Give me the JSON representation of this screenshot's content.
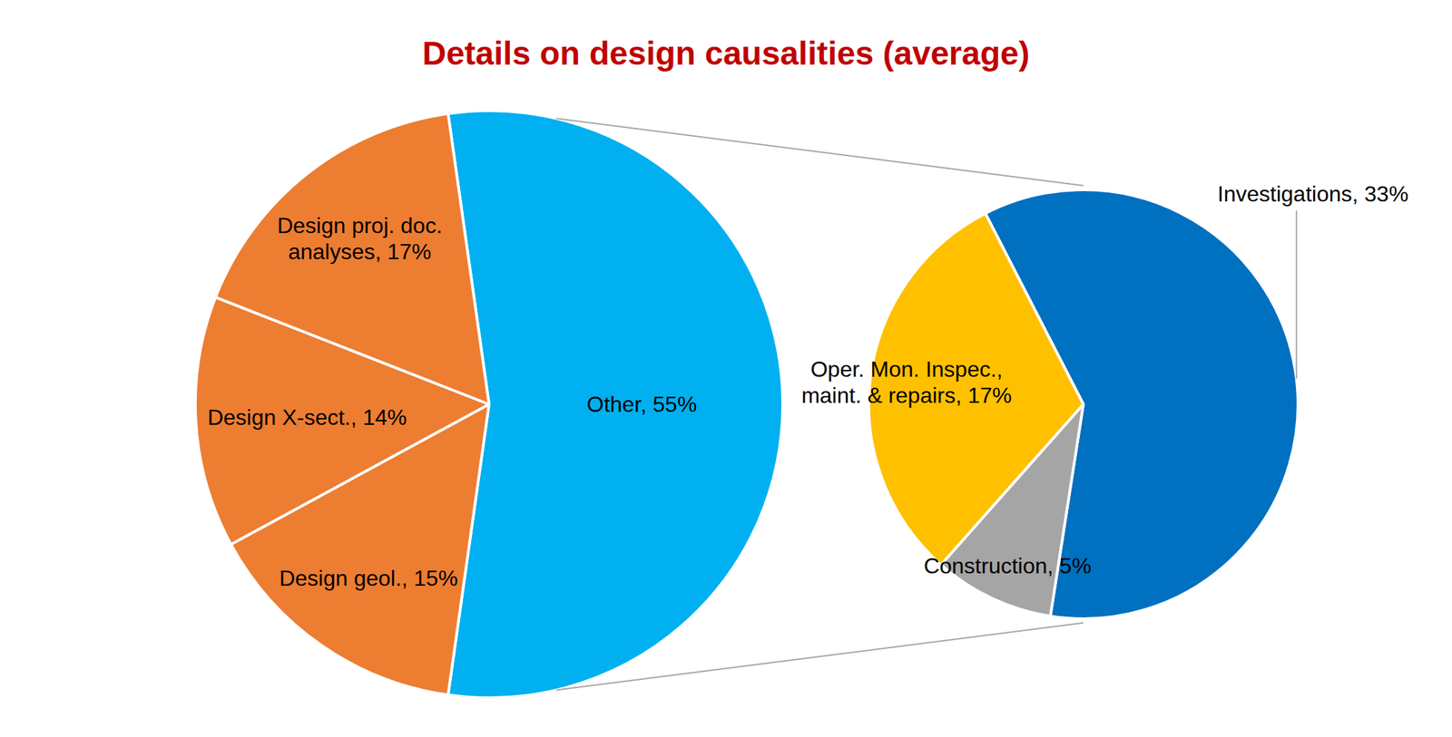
{
  "chart_data": [
    {
      "type": "pie",
      "title": "Details on design causalities (average)",
      "categories": [
        "Other",
        "Design geol.",
        "Design X-sect.",
        "Design proj. doc. analyses"
      ],
      "values": [
        55,
        15,
        14,
        17
      ],
      "value_labels": [
        "55%",
        "15%",
        "14%",
        "17%"
      ],
      "colors": [
        "#00B0F0",
        "#ED7D31",
        "#ED7D31",
        "#ED7D31"
      ],
      "data_labels": true
    },
    {
      "type": "pie",
      "categories": [
        "Investigations",
        "Construction",
        "Oper. Mon. Inspec., maint. & repairs"
      ],
      "values": [
        33,
        5,
        17
      ],
      "value_labels": [
        "33%",
        "5%",
        "17%"
      ],
      "colors": [
        "#0070C0",
        "#A5A5A5",
        "#FFC000"
      ],
      "data_labels": true
    }
  ]
}
